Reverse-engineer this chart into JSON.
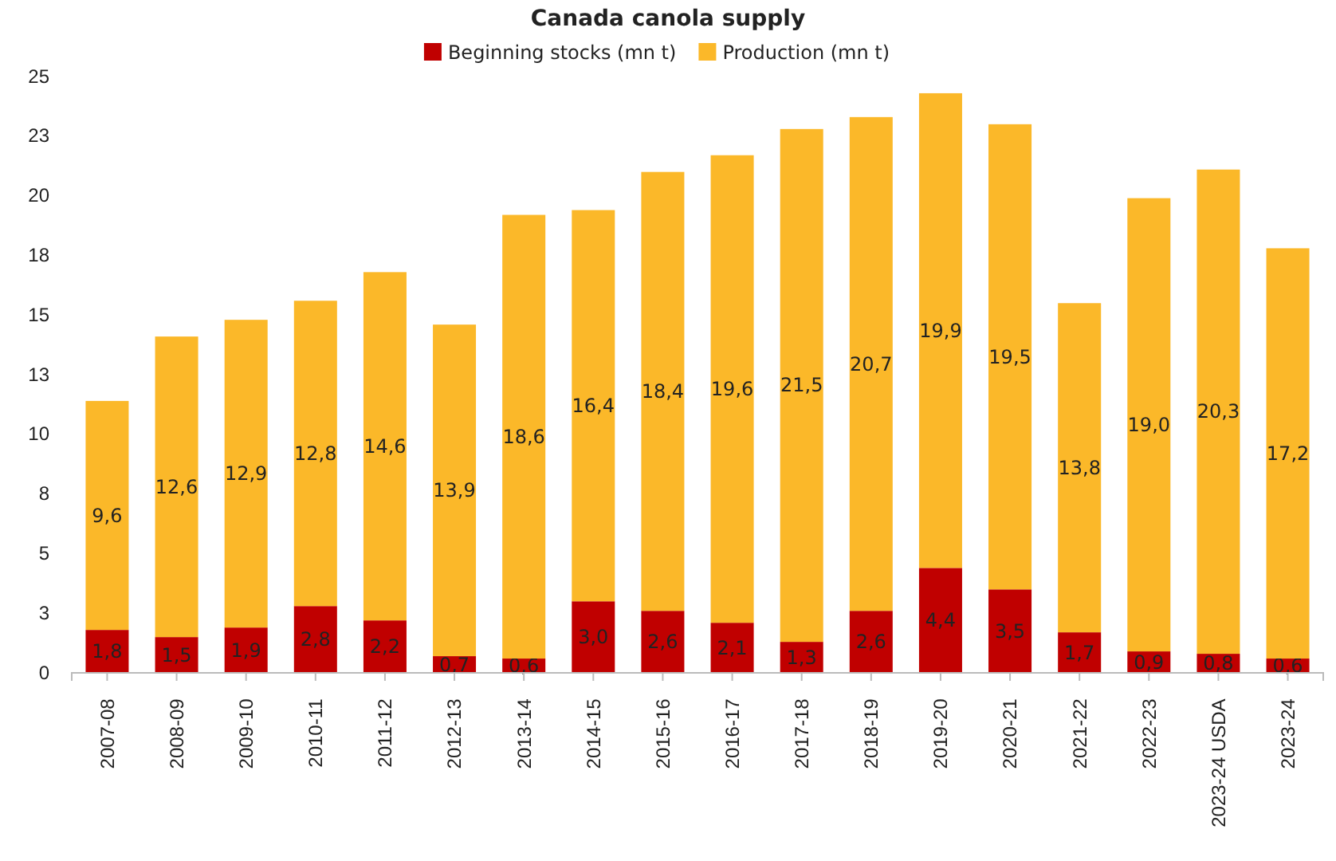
{
  "chart_data": {
    "type": "bar",
    "title": "Canada canola supply",
    "stacked": true,
    "legend": "top",
    "categories": [
      "2007-08",
      "2008-09",
      "2009-10",
      "2010-11",
      "2011-12",
      "2012-13",
      "2013-14",
      "2014-15",
      "2015-16",
      "2016-17",
      "2017-18",
      "2018-19",
      "2019-20",
      "2020-21",
      "2021-22",
      "2022-23",
      "2023-24 USDA",
      "2023-24"
    ],
    "series": [
      {
        "name": "Beginning stocks (mn t)",
        "color": "#c00000",
        "values": [
          1.8,
          1.5,
          1.9,
          2.8,
          2.2,
          0.7,
          0.6,
          3.0,
          2.6,
          2.1,
          1.3,
          2.6,
          4.4,
          3.5,
          1.7,
          0.9,
          0.8,
          0.6
        ],
        "value_labels": [
          "1,8",
          "1,5",
          "1,9",
          "2,8",
          "2,2",
          "0,7",
          "0,6",
          "3,0",
          "2,6",
          "2,1",
          "1,3",
          "2,6",
          "4,4",
          "3,5",
          "1,7",
          "0,9",
          "0,8",
          "0,6"
        ]
      },
      {
        "name": "Production (mn t)",
        "color": "#fbb829",
        "values": [
          9.6,
          12.6,
          12.9,
          12.8,
          14.6,
          13.9,
          18.6,
          16.4,
          18.4,
          19.6,
          21.5,
          20.7,
          19.9,
          19.5,
          13.8,
          19.0,
          20.3,
          17.2
        ],
        "value_labels": [
          "9,6",
          "12,6",
          "12,9",
          "12,8",
          "14,6",
          "13,9",
          "18,6",
          "16,4",
          "18,4",
          "19,6",
          "21,5",
          "20,7",
          "19,9",
          "19,5",
          "13,8",
          "19,0",
          "20,3",
          "17,2"
        ]
      }
    ],
    "ylim": [
      0,
      25
    ],
    "yticks": [
      0,
      {
        "value": 2.5,
        "label": "3"
      },
      5,
      {
        "value": 7.5,
        "label": "8"
      },
      10,
      {
        "value": 12.5,
        "label": "13"
      },
      15,
      {
        "value": 17.5,
        "label": "18"
      },
      20,
      {
        "value": 22.5,
        "label": "23"
      },
      25
    ]
  }
}
